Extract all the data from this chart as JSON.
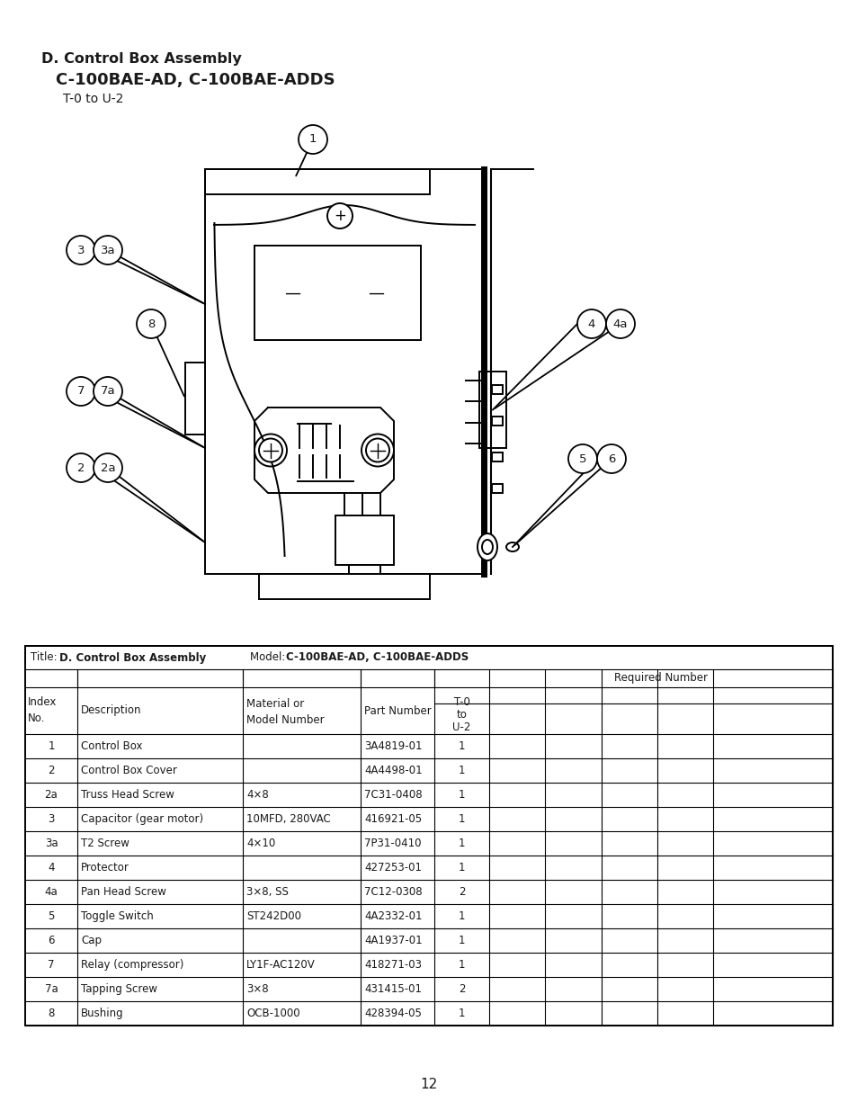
{
  "title_line1": "D. Control Box Assembly",
  "title_line2": "C-100BAE-AD, C-100BAE-ADDS",
  "title_line3": "T-0 to U-2",
  "rows": [
    {
      "idx": "1",
      "desc": "Control Box",
      "mat": "",
      "part": "3A4819-01",
      "qty": "1"
    },
    {
      "idx": "2",
      "desc": "Control Box Cover",
      "mat": "",
      "part": "4A4498-01",
      "qty": "1"
    },
    {
      "idx": "2a",
      "desc": "Truss Head Screw",
      "mat": "4×8",
      "part": "7C31-0408",
      "qty": "1"
    },
    {
      "idx": "3",
      "desc": "Capacitor (gear motor)",
      "mat": "10MFD, 280VAC",
      "part": "416921-05",
      "qty": "1"
    },
    {
      "idx": "3a",
      "desc": "T2 Screw",
      "mat": "4×10",
      "part": "7P31-0410",
      "qty": "1"
    },
    {
      "idx": "4",
      "desc": "Protector",
      "mat": "",
      "part": "427253-01",
      "qty": "1"
    },
    {
      "idx": "4a",
      "desc": "Pan Head Screw",
      "mat": "3×8, SS",
      "part": "7C12-0308",
      "qty": "2"
    },
    {
      "idx": "5",
      "desc": "Toggle Switch",
      "mat": "ST242D00",
      "part": "4A2332-01",
      "qty": "1"
    },
    {
      "idx": "6",
      "desc": "Cap",
      "mat": "",
      "part": "4A1937-01",
      "qty": "1"
    },
    {
      "idx": "7",
      "desc": "Relay (compressor)",
      "mat": "LY1F-AC120V",
      "part": "418271-03",
      "qty": "1"
    },
    {
      "idx": "7a",
      "desc": "Tapping Screw",
      "mat": "3×8",
      "part": "431415-01",
      "qty": "2"
    },
    {
      "idx": "8",
      "desc": "Bushing",
      "mat": "OCB-1000",
      "part": "428394-05",
      "qty": "1"
    }
  ],
  "page_number": "12",
  "bg_color": "#ffffff",
  "text_color": "#1a1a1a",
  "border_color": "#000000"
}
